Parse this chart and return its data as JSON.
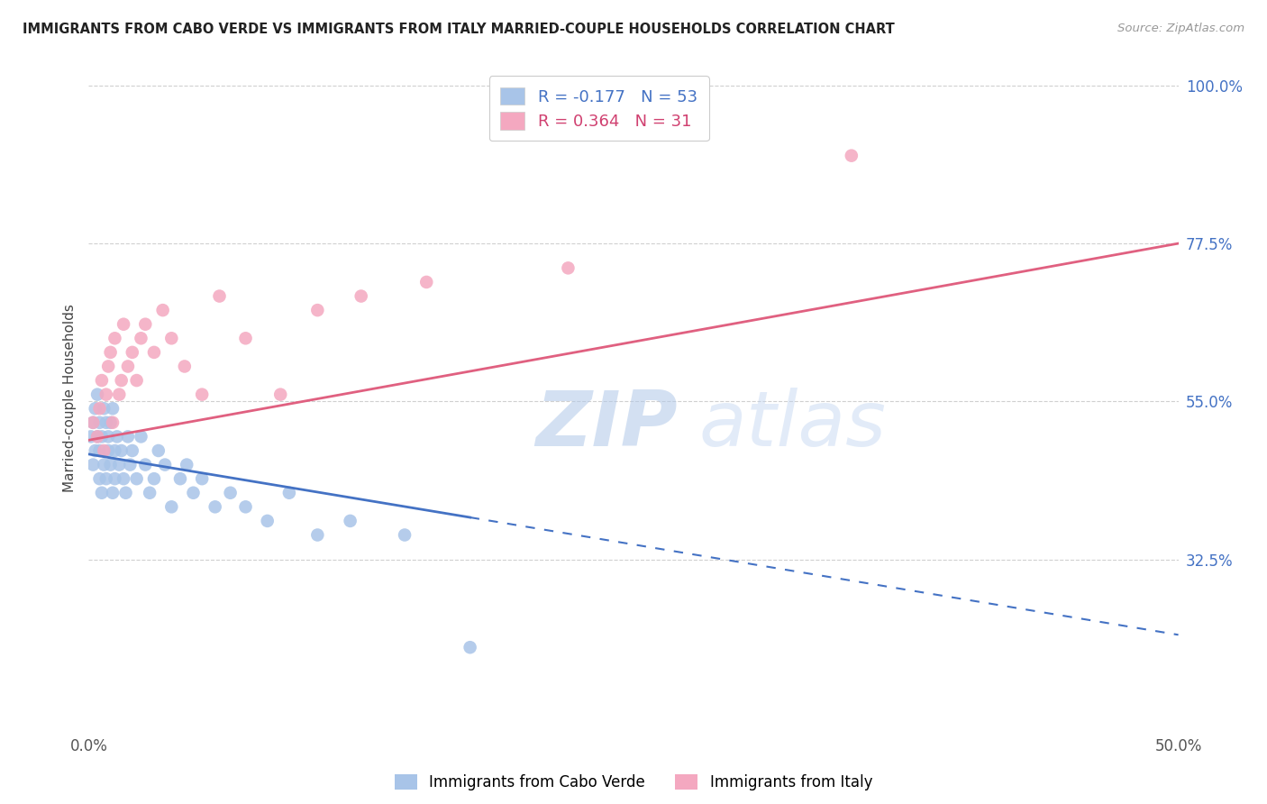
{
  "title": "IMMIGRANTS FROM CABO VERDE VS IMMIGRANTS FROM ITALY MARRIED-COUPLE HOUSEHOLDS CORRELATION CHART",
  "source": "Source: ZipAtlas.com",
  "ylabel": "Married-couple Households",
  "watermark_part1": "ZIP",
  "watermark_part2": "atlas",
  "cabo_verde_R": -0.177,
  "cabo_verde_N": 53,
  "italy_R": 0.364,
  "italy_N": 31,
  "cabo_verde_dot_color": "#a8c4e8",
  "italy_dot_color": "#f4a8c0",
  "cabo_verde_line_color": "#4472c4",
  "italy_line_color": "#e06080",
  "xmin": 0.0,
  "xmax": 0.5,
  "ymin": 0.08,
  "ymax": 1.03,
  "ytick_vals": [
    0.325,
    0.55,
    0.775,
    1.0
  ],
  "ytick_labels": [
    "32.5%",
    "55.0%",
    "77.5%",
    "100.0%"
  ],
  "xtick_vals": [
    0.0,
    0.1,
    0.2,
    0.3,
    0.4,
    0.5
  ],
  "xtick_labels": [
    "0.0%",
    "",
    "",
    "",
    "",
    "50.0%"
  ],
  "cv_x": [
    0.001,
    0.002,
    0.002,
    0.003,
    0.003,
    0.004,
    0.004,
    0.005,
    0.005,
    0.005,
    0.006,
    0.006,
    0.007,
    0.007,
    0.008,
    0.008,
    0.009,
    0.009,
    0.01,
    0.01,
    0.011,
    0.011,
    0.012,
    0.012,
    0.013,
    0.014,
    0.015,
    0.016,
    0.017,
    0.018,
    0.019,
    0.02,
    0.022,
    0.024,
    0.026,
    0.028,
    0.03,
    0.032,
    0.035,
    0.038,
    0.042,
    0.045,
    0.048,
    0.052,
    0.058,
    0.065,
    0.072,
    0.082,
    0.092,
    0.105,
    0.12,
    0.145,
    0.175
  ],
  "cv_y": [
    0.5,
    0.52,
    0.46,
    0.54,
    0.48,
    0.5,
    0.56,
    0.52,
    0.44,
    0.48,
    0.5,
    0.42,
    0.54,
    0.46,
    0.52,
    0.44,
    0.48,
    0.5,
    0.52,
    0.46,
    0.42,
    0.54,
    0.48,
    0.44,
    0.5,
    0.46,
    0.48,
    0.44,
    0.42,
    0.5,
    0.46,
    0.48,
    0.44,
    0.5,
    0.46,
    0.42,
    0.44,
    0.48,
    0.46,
    0.4,
    0.44,
    0.46,
    0.42,
    0.44,
    0.4,
    0.42,
    0.4,
    0.38,
    0.42,
    0.36,
    0.38,
    0.36,
    0.2
  ],
  "it_x": [
    0.002,
    0.004,
    0.005,
    0.006,
    0.007,
    0.008,
    0.009,
    0.01,
    0.011,
    0.012,
    0.014,
    0.015,
    0.016,
    0.018,
    0.02,
    0.022,
    0.024,
    0.026,
    0.03,
    0.034,
    0.038,
    0.044,
    0.052,
    0.06,
    0.072,
    0.088,
    0.105,
    0.125,
    0.155,
    0.22,
    0.35
  ],
  "it_y": [
    0.52,
    0.5,
    0.54,
    0.58,
    0.48,
    0.56,
    0.6,
    0.62,
    0.52,
    0.64,
    0.56,
    0.58,
    0.66,
    0.6,
    0.62,
    0.58,
    0.64,
    0.66,
    0.62,
    0.68,
    0.64,
    0.6,
    0.56,
    0.7,
    0.64,
    0.56,
    0.68,
    0.7,
    0.72,
    0.74,
    0.9
  ],
  "cv_line_x0": 0.0,
  "cv_line_y0": 0.475,
  "cv_line_x1": 0.175,
  "cv_line_y1": 0.385,
  "it_line_x0": 0.0,
  "it_line_y0": 0.495,
  "it_line_x1": 0.5,
  "it_line_y1": 0.775
}
